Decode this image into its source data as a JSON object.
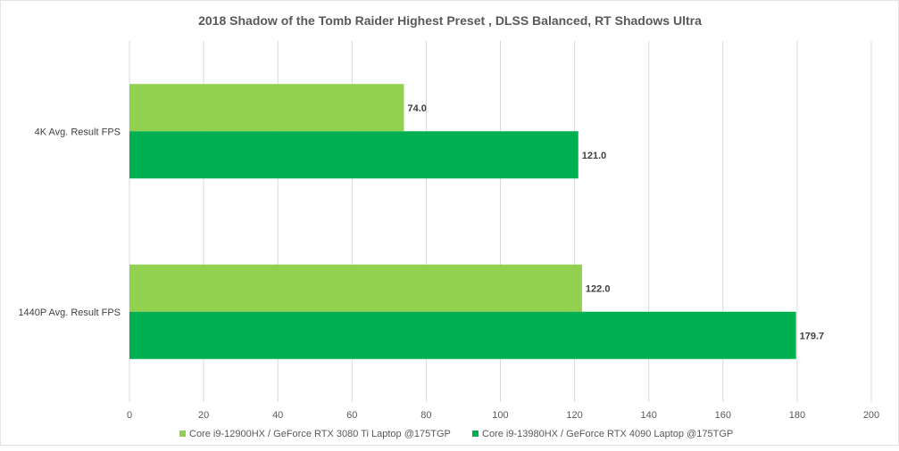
{
  "chart_data": {
    "type": "bar",
    "orientation": "horizontal",
    "title": "2018 Shadow of the Tomb Raider Highest Preset , DLSS Balanced, RT Shadows Ultra",
    "categories": [
      "4K Avg. Result  FPS",
      "1440P Avg. Result FPS"
    ],
    "series": [
      {
        "name": "Core i9-12900HX / GeForce RTX 3080 Ti Laptop @175TGP",
        "color": "#92d050",
        "values": [
          74.0,
          122.0
        ],
        "labels": [
          "74.0",
          "122.0"
        ]
      },
      {
        "name": "Core i9-13980HX  / GeForce RTX 4090 Laptop @175TGP",
        "color": "#00b050",
        "values": [
          121.0,
          179.7
        ],
        "labels": [
          "121.0",
          "179.7"
        ]
      }
    ],
    "xlim": [
      0,
      200
    ],
    "xticks": [
      "0",
      "20",
      "40",
      "60",
      "80",
      "100",
      "120",
      "140",
      "160",
      "180",
      "200"
    ],
    "grid": true,
    "legend_position": "bottom",
    "xlabel": "",
    "ylabel": ""
  }
}
